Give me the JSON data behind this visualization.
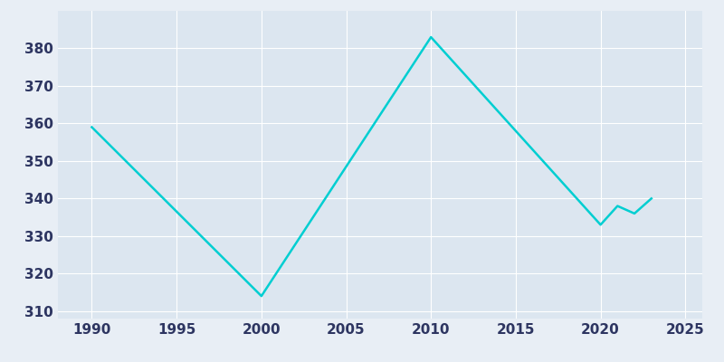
{
  "x": [
    1990,
    2000,
    2010,
    2020,
    2021,
    2022,
    2023
  ],
  "y": [
    359,
    314,
    383,
    333,
    338,
    336,
    340
  ],
  "line_color": "#00CED1",
  "fig_bg_color": "#e8eef5",
  "plot_bg_color": "#dce6f0",
  "xlim": [
    1988,
    2026
  ],
  "ylim": [
    308,
    390
  ],
  "yticks": [
    310,
    320,
    330,
    340,
    350,
    360,
    370,
    380
  ],
  "xticks": [
    1990,
    1995,
    2000,
    2005,
    2010,
    2015,
    2020,
    2025
  ],
  "grid_color": "#ffffff",
  "tick_label_color": "#2d3561",
  "line_width": 1.8,
  "tick_fontsize": 11
}
